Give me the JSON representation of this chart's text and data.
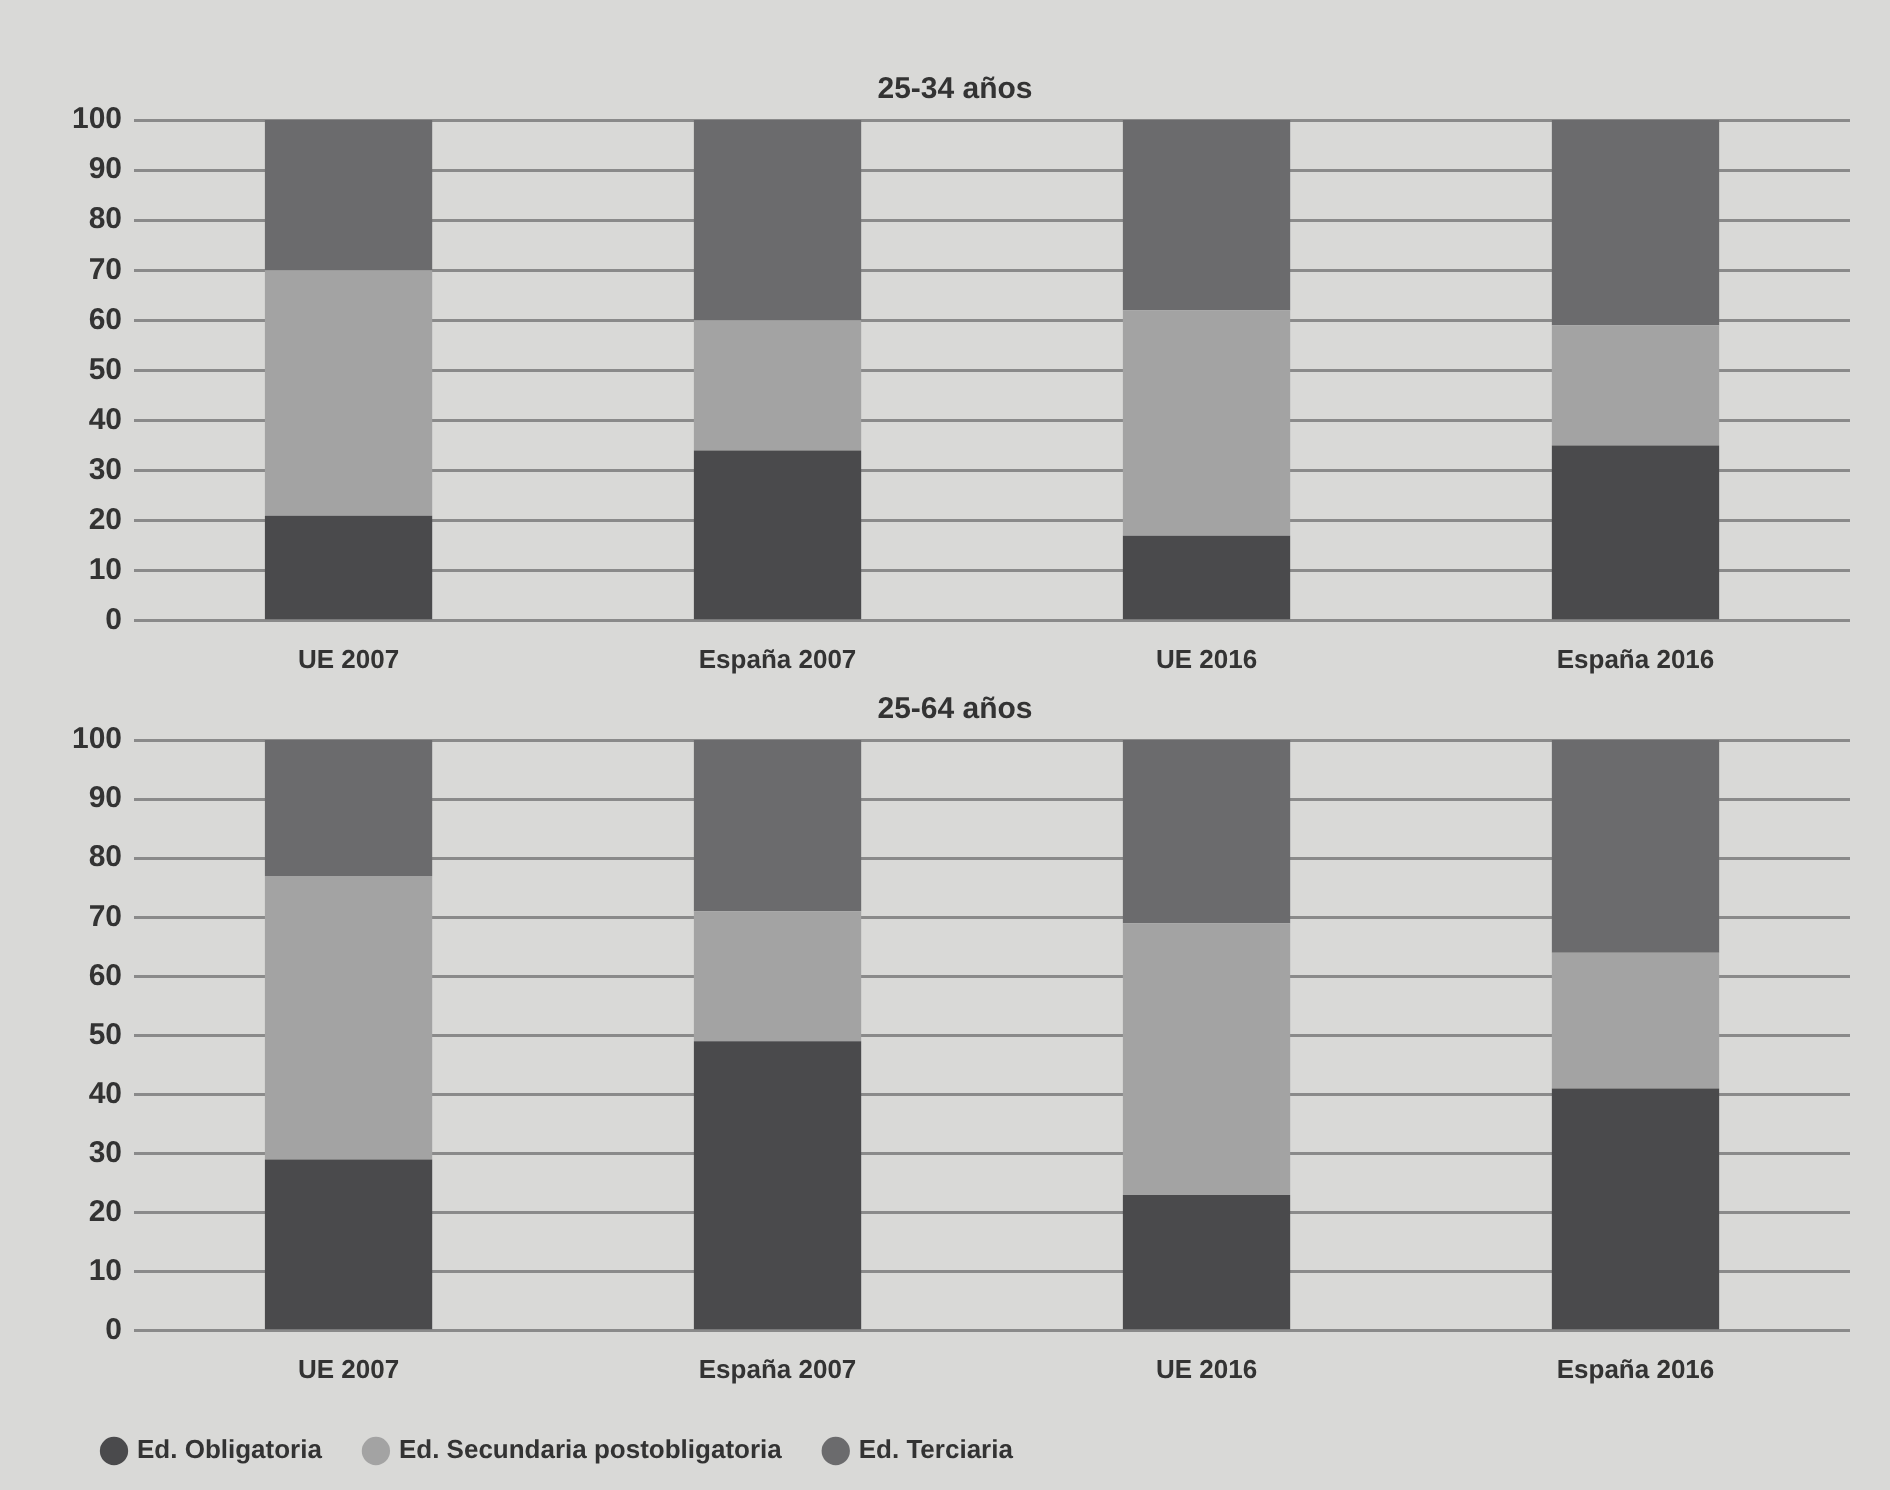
{
  "chart_data": [
    {
      "type": "bar",
      "title": "25-34 años",
      "categories": [
        "UE 2007",
        "España 2007",
        "UE 2016",
        "España 2016"
      ],
      "stacked": true,
      "ylim": [
        0,
        100
      ],
      "yticks": [
        0,
        10,
        20,
        30,
        40,
        50,
        60,
        70,
        80,
        90,
        100
      ],
      "grid": "y",
      "legend": false,
      "series": [
        {
          "color": "#4a4a4c",
          "values": [
            21,
            34,
            17,
            35
          ]
        },
        {
          "color": "#a3a3a3",
          "values": [
            49,
            26,
            45,
            24
          ]
        },
        {
          "color": "#6b6b6d",
          "values": [
            30,
            40,
            38,
            41
          ]
        }
      ]
    },
    {
      "type": "bar",
      "title": "25-64 años",
      "categories": [
        "UE 2007",
        "España 2007",
        "UE 2016",
        "España 2016"
      ],
      "stacked": true,
      "ylim": [
        0,
        100
      ],
      "yticks": [
        0,
        10,
        20,
        30,
        40,
        50,
        60,
        70,
        80,
        90,
        100
      ],
      "grid": "y",
      "legend": "bottom left",
      "series": [
        {
          "name": "Ed. Obligatoria",
          "color": "#4a4a4c",
          "values": [
            29,
            49,
            23,
            41
          ]
        },
        {
          "name": "Ed. Secundaria postobligatoria",
          "color": "#a3a3a3",
          "values": [
            48,
            22,
            46,
            23
          ]
        },
        {
          "name": "Ed. Terciaria",
          "color": "#6b6b6d",
          "values": [
            23,
            29,
            31,
            36
          ]
        }
      ]
    }
  ]
}
